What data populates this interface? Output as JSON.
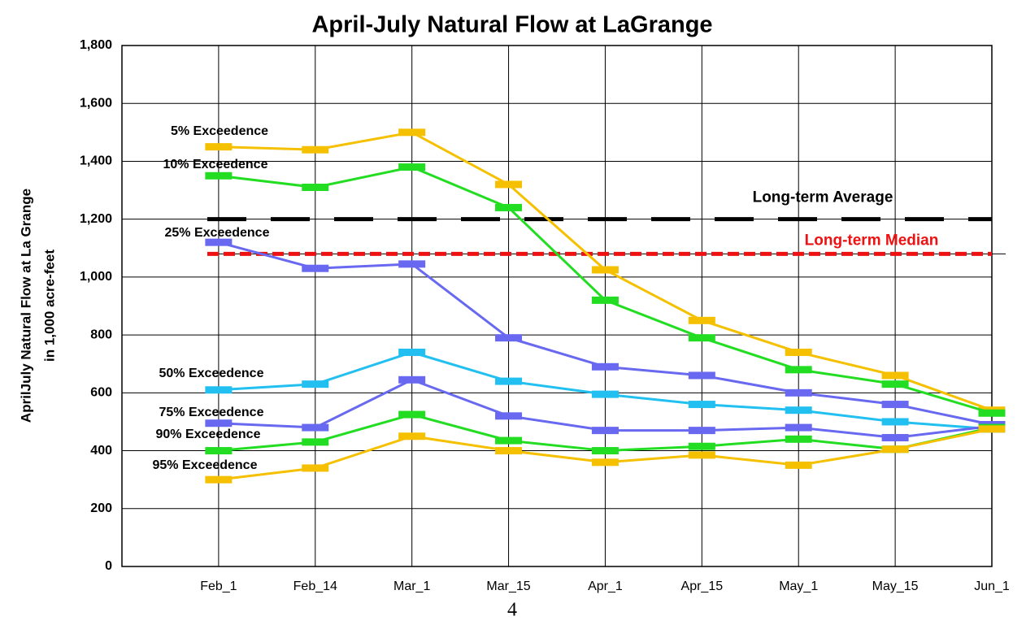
{
  "chart_data": {
    "type": "line",
    "title": "April-July Natural Flow at LaGrange",
    "y_axis_label": [
      "AprilJuly Natural Flow at La Grange",
      "in 1,000 acre-feet"
    ],
    "categories": [
      "Feb_1",
      "Feb_14",
      "Mar_1",
      "Mar_15",
      "Apr_1",
      "Apr_15",
      "May_1",
      "May_15",
      "Jun_1"
    ],
    "series": [
      {
        "name": "5% Exceedence",
        "color": "#f5c000",
        "values": [
          1450,
          1440,
          1500,
          1320,
          1025,
          850,
          740,
          660,
          540
        ]
      },
      {
        "name": "10% Exceedence",
        "color": "#22dd22",
        "values": [
          1350,
          1310,
          1380,
          1240,
          920,
          790,
          680,
          630,
          530
        ]
      },
      {
        "name": "25% Exceedence",
        "color": "#6868f0",
        "values": [
          1120,
          1030,
          1045,
          790,
          690,
          660,
          600,
          560,
          490
        ]
      },
      {
        "name": "50% Exceedence",
        "color": "#22c0f0",
        "values": [
          610,
          630,
          740,
          640,
          595,
          560,
          540,
          500,
          475
        ]
      },
      {
        "name": "75% Exceedence",
        "color": "#6868f0",
        "values": [
          495,
          480,
          645,
          520,
          470,
          470,
          480,
          445,
          485
        ]
      },
      {
        "name": "90% Exceedence",
        "color": "#22dd22",
        "values": [
          400,
          430,
          525,
          435,
          400,
          415,
          440,
          405,
          480
        ]
      },
      {
        "name": "95% Exceedence",
        "color": "#f5c000",
        "values": [
          300,
          340,
          450,
          400,
          360,
          385,
          350,
          405,
          475
        ]
      }
    ],
    "reference_lines": [
      {
        "name": "Long-term Average",
        "value": 1200,
        "color": "#000000"
      },
      {
        "name": "Long-term Median",
        "value": 1080,
        "color": "#ee1111"
      }
    ],
    "ylim": [
      0,
      1800
    ],
    "yticks": [
      0,
      200,
      400,
      600,
      800,
      {
        "value": 1000,
        "label": "1,000"
      },
      {
        "value": 1200,
        "label": "1,200"
      },
      {
        "value": 1400,
        "label": "1,400"
      },
      {
        "value": 1600,
        "label": "1,600"
      },
      {
        "value": 1800,
        "label": "1,800"
      }
    ],
    "grid": true,
    "page_number": "4"
  }
}
